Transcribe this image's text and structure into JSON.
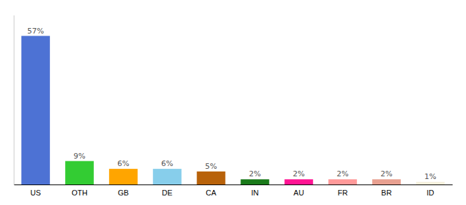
{
  "chart_data": {
    "type": "bar",
    "categories": [
      "US",
      "OTH",
      "GB",
      "DE",
      "CA",
      "IN",
      "AU",
      "FR",
      "BR",
      "ID"
    ],
    "values": [
      57,
      9,
      6,
      6,
      5,
      2,
      2,
      2,
      2,
      1
    ],
    "value_labels": [
      "57%",
      "9%",
      "6%",
      "6%",
      "5%",
      "2%",
      "2%",
      "2%",
      "2%",
      "1%"
    ],
    "colors": [
      "#4d72d4",
      "#33cc33",
      "#ffa500",
      "#87ceeb",
      "#b8620a",
      "#1a7a1a",
      "#ff1493",
      "#ff9999",
      "#e8a090",
      "#f5f0dc"
    ],
    "data_labels": true,
    "ylim": [
      0,
      65
    ],
    "grid": false,
    "tick_labels": "x"
  }
}
